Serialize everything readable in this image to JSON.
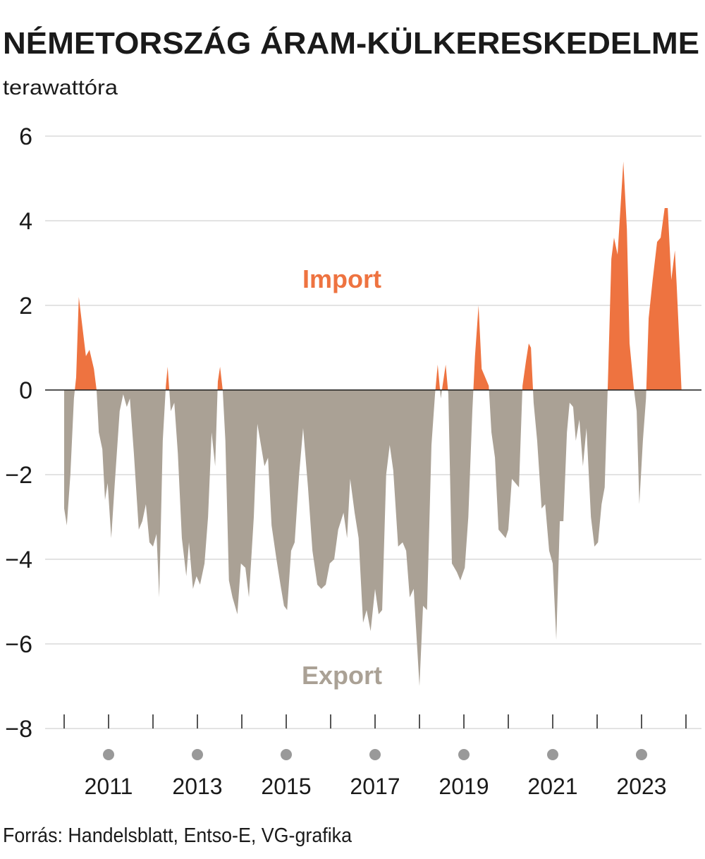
{
  "chart_data": {
    "type": "area",
    "title": "NÉMETORSZÁG ÁRAM-KÜLKERESKEDELME",
    "subtitle": "terawattóra",
    "source": "Forrás: Handelsblatt, Entso-E, VG-grafika",
    "annotations": [
      {
        "text": "Import",
        "color": "#ee7340"
      },
      {
        "text": "Export",
        "color": "#aaa195"
      }
    ],
    "positive_color": "#ee7340",
    "negative_color": "#aaa195",
    "grid": true,
    "xlim": [
      2010,
      2024
    ],
    "xticks": [
      2011,
      2013,
      2015,
      2017,
      2019,
      2021,
      2023
    ],
    "xminorticks": [
      2010,
      2011,
      2012,
      2013,
      2014,
      2015,
      2016,
      2017,
      2018,
      2019,
      2020,
      2021,
      2022,
      2023,
      2024
    ],
    "ylim": [
      -8,
      6
    ],
    "yticks": [
      {
        "value": -8,
        "label": "−8"
      },
      {
        "value": -6,
        "label": "−6"
      },
      {
        "value": -4,
        "label": "−4"
      },
      {
        "value": -2,
        "label": "−2"
      },
      0,
      2,
      4,
      6
    ],
    "x": [
      2010.0,
      2010.06,
      2010.14,
      2010.22,
      2010.27,
      2010.33,
      2010.41,
      2010.49,
      2010.57,
      2010.67,
      2010.73,
      2010.78,
      2010.86,
      2010.92,
      2010.98,
      2011.06,
      2011.14,
      2011.25,
      2011.33,
      2011.41,
      2011.48,
      2011.57,
      2011.68,
      2011.76,
      2011.84,
      2011.92,
      2012.0,
      2012.08,
      2012.14,
      2012.22,
      2012.29,
      2012.33,
      2012.4,
      2012.48,
      2012.56,
      2012.65,
      2012.75,
      2012.81,
      2012.9,
      2012.98,
      2013.06,
      2013.16,
      2013.24,
      2013.32,
      2013.4,
      2013.46,
      2013.51,
      2013.57,
      2013.63,
      2013.71,
      2013.79,
      2013.9,
      2013.98,
      2014.08,
      2014.16,
      2014.27,
      2014.35,
      2014.43,
      2014.51,
      2014.59,
      2014.67,
      2014.78,
      2014.87,
      2014.95,
      2015.02,
      2015.11,
      2015.19,
      2015.29,
      2015.38,
      2015.49,
      2015.59,
      2015.7,
      2015.79,
      2015.89,
      2015.98,
      2016.08,
      2016.17,
      2016.29,
      2016.37,
      2016.44,
      2016.54,
      2016.63,
      2016.73,
      2016.81,
      2016.9,
      2017.0,
      2017.08,
      2017.16,
      2017.25,
      2017.33,
      2017.41,
      2017.52,
      2017.62,
      2017.7,
      2017.78,
      2017.87,
      2018.0,
      2018.08,
      2018.17,
      2018.27,
      2018.35,
      2018.41,
      2018.48,
      2018.52,
      2018.59,
      2018.65,
      2018.73,
      2018.84,
      2018.92,
      2019.02,
      2019.1,
      2019.19,
      2019.25,
      2019.33,
      2019.4,
      2019.48,
      2019.56,
      2019.62,
      2019.7,
      2019.78,
      2019.86,
      2019.94,
      2020.0,
      2020.08,
      2020.16,
      2020.24,
      2020.32,
      2020.4,
      2020.46,
      2020.51,
      2020.57,
      2020.65,
      2020.75,
      2020.83,
      2020.92,
      2021.0,
      2021.08,
      2021.16,
      2021.24,
      2021.32,
      2021.38,
      2021.46,
      2021.52,
      2021.6,
      2021.68,
      2021.76,
      2021.86,
      2021.94,
      2022.02,
      2022.1,
      2022.17,
      2022.24,
      2022.32,
      2022.38,
      2022.46,
      2022.59,
      2022.67,
      2022.73,
      2022.83,
      2022.89,
      2022.95,
      2023.03,
      2023.1,
      2023.16,
      2023.25,
      2023.35,
      2023.43,
      2023.52,
      2023.59,
      2023.67,
      2023.75,
      2023.79,
      2023.9
    ],
    "values": [
      -2.8,
      -3.2,
      -2.0,
      -0.2,
      0.3,
      2.2,
      1.5,
      0.8,
      0.95,
      0.5,
      0,
      -1.0,
      -1.4,
      -2.6,
      -2.2,
      -3.5,
      -2.2,
      -0.5,
      -0.1,
      -0.4,
      -0.2,
      -1.5,
      -3.3,
      -3.1,
      -2.7,
      -3.6,
      -3.7,
      -3.4,
      -4.9,
      -1.2,
      0.1,
      0.55,
      -0.5,
      -0.3,
      -1.5,
      -3.5,
      -4.4,
      -3.6,
      -4.7,
      -4.4,
      -4.6,
      -4.1,
      -3.0,
      -1.0,
      -1.8,
      0.2,
      0.55,
      0,
      -1.2,
      -4.5,
      -4.9,
      -5.3,
      -4.1,
      -4.2,
      -4.9,
      -3.0,
      -0.8,
      -1.3,
      -1.8,
      -1.6,
      -3.2,
      -4.0,
      -4.6,
      -5.1,
      -5.2,
      -3.8,
      -3.6,
      -2.0,
      -0.9,
      -2.3,
      -3.8,
      -4.6,
      -4.7,
      -4.6,
      -4.1,
      -4.0,
      -3.3,
      -2.9,
      -3.5,
      -2.1,
      -2.9,
      -3.5,
      -5.5,
      -5.2,
      -5.7,
      -4.7,
      -5.3,
      -5.2,
      -2.0,
      -1.3,
      -1.9,
      -3.7,
      -3.6,
      -3.8,
      -4.9,
      -4.7,
      -7.0,
      -5.1,
      -5.2,
      -1.3,
      -0.1,
      0.6,
      -0.2,
      0.1,
      0.6,
      -0.1,
      -4.1,
      -4.3,
      -4.5,
      -4.2,
      -3.0,
      -0.5,
      0.8,
      2.0,
      0.5,
      0.3,
      0.1,
      -1.0,
      -1.6,
      -3.3,
      -3.4,
      -3.5,
      -3.3,
      -2.1,
      -2.2,
      -2.3,
      0.1,
      0.7,
      1.1,
      1.0,
      -0.3,
      -1.2,
      -2.8,
      -2.7,
      -3.8,
      -4.1,
      -5.9,
      -3.1,
      -3.1,
      -1.0,
      -0.3,
      -0.4,
      -1.2,
      -0.7,
      -1.8,
      -0.9,
      -3.0,
      -3.7,
      -3.6,
      -2.7,
      -2.3,
      0.1,
      3.1,
      3.6,
      3.2,
      5.4,
      3.8,
      1.1,
      0,
      -0.5,
      -2.7,
      -1.2,
      -0.2,
      1.7,
      2.6,
      3.5,
      3.6,
      4.3,
      4.3,
      2.6,
      3.3,
      2.5,
      0
    ]
  }
}
